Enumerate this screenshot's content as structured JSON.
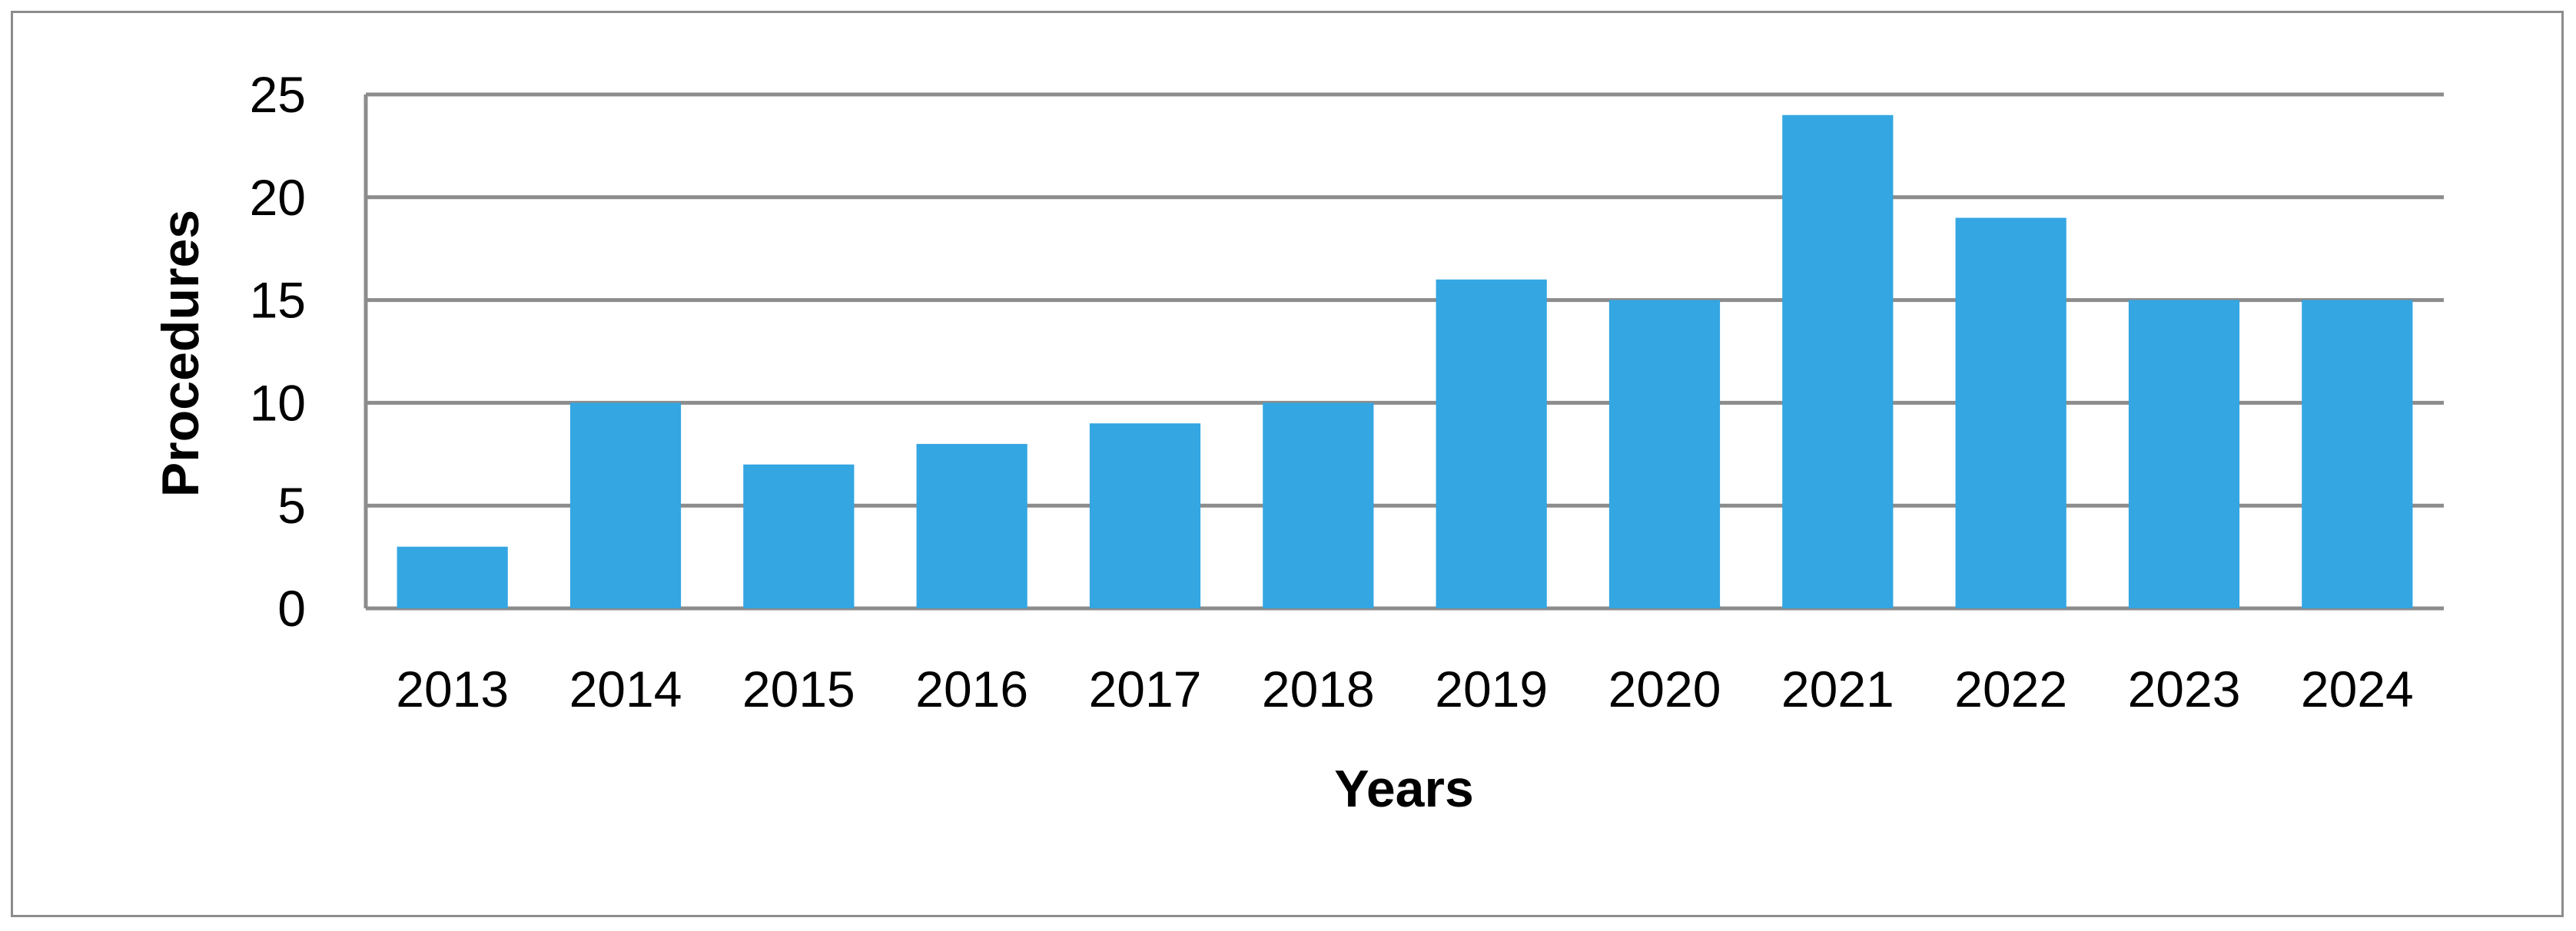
{
  "chart_data": {
    "type": "bar",
    "title": "",
    "xlabel": "Years",
    "ylabel": "Procedures",
    "categories": [
      "2013",
      "2014",
      "2015",
      "2016",
      "2017",
      "2018",
      "2019",
      "2020",
      "2021",
      "2022",
      "2023",
      "2024"
    ],
    "values": [
      3,
      10,
      7,
      8,
      9,
      10,
      16,
      15,
      24,
      19,
      15,
      15
    ],
    "ylim": [
      0,
      25
    ],
    "yticks": [
      "0",
      "5",
      "10",
      "15",
      "20",
      "25"
    ],
    "grid": true,
    "legend": "none",
    "bar_color": "#34a6e2",
    "grid_color": "#8c8c8c"
  }
}
